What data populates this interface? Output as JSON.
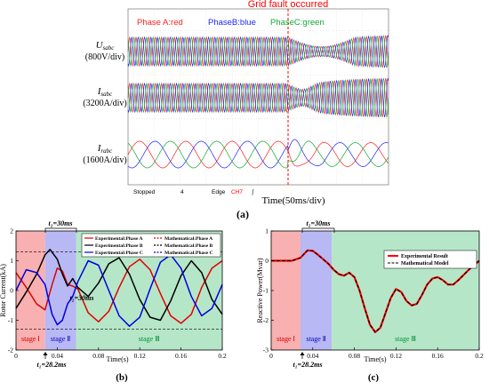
{
  "panel_a": {
    "caption": "(a)",
    "fault_label": "Grid fault occurred",
    "legend": {
      "phase_a": "Phase A:red",
      "phase_b": "PhaseB:blue",
      "phase_c": "PhaseC:green"
    },
    "rows": [
      {
        "label": "U",
        "sub": "sabc",
        "scale": "(800V/div)"
      },
      {
        "label": "I",
        "sub": "sabc",
        "scale": "(3200A/div)"
      },
      {
        "label": "I",
        "sub": "rabc",
        "scale": "(1600A/div)"
      }
    ],
    "status": {
      "stopped": "Stopped",
      "num": "4",
      "edge": "Edge",
      "ch": "CH7",
      "mark": "ʃ"
    },
    "time_label": "Time(50ms/div)",
    "colors": {
      "a": "#ff2020",
      "b": "#2222ff",
      "c": "#11aa33",
      "fault": "#ff0000"
    }
  },
  "chart_data": [
    {
      "type": "line",
      "panel": "(b)",
      "xlabel": "Time(s)",
      "ylabel": "Rotor Current(kA)",
      "xlim": [
        0,
        0.2
      ],
      "ylim": [
        -2,
        2
      ],
      "x_ticks": [
        "0",
        "0.04",
        "0.08",
        "0.12",
        "0.16",
        "0.2"
      ],
      "y_ticks": [
        "2",
        "1",
        "0",
        "-1",
        "-2"
      ],
      "legend": [
        {
          "name": "Experimental:Phase A",
          "color": "#e00000"
        },
        {
          "name": "Mathematical:Phase A",
          "color": "#e00000"
        },
        {
          "name": "Experimental:Phase B",
          "color": "#000000"
        },
        {
          "name": "Mathematical:Phase B",
          "color": "#000000"
        },
        {
          "name": "Experimental:Phase C",
          "color": "#0000e0"
        },
        {
          "name": "Mathematical:Phase C",
          "color": "#0000e0"
        }
      ],
      "stages": [
        {
          "label": "stage Ⅰ",
          "x0": 0,
          "x1": 0.0282,
          "color": "#f8b0b0"
        },
        {
          "label": "stage Ⅱ",
          "x0": 0.0282,
          "x1": 0.0582,
          "color": "#b8b8f4"
        },
        {
          "label": "stage Ⅲ",
          "x0": 0.0582,
          "x1": 0.2,
          "color": "#b6e6c8"
        }
      ],
      "dashed_levels": [
        1.3,
        -1.3
      ],
      "annotations": {
        "t1": "t₁=28.2ms",
        "t2_top": "t₂=30ms",
        "t2_mid": "t₂=30ms"
      },
      "series": [
        {
          "name": "Phase A",
          "color": "#e00000",
          "x": [
            0,
            0.01,
            0.02,
            0.0282,
            0.035,
            0.04,
            0.045,
            0.05,
            0.055,
            0.06,
            0.07,
            0.08,
            0.09,
            0.1,
            0.11,
            0.12,
            0.13,
            0.14,
            0.15,
            0.16,
            0.17,
            0.18,
            0.19,
            0.2
          ],
          "y": [
            0.6,
            0.1,
            -0.45,
            -0.65,
            0.2,
            0.75,
            0.65,
            0.2,
            0.15,
            0.05,
            -0.75,
            -1.05,
            -0.7,
            0.1,
            0.8,
            1.05,
            0.7,
            -0.1,
            -0.85,
            -1.1,
            -0.8,
            0.1,
            0.75,
            1.0
          ]
        },
        {
          "name": "Phase B",
          "color": "#000000",
          "x": [
            0,
            0.01,
            0.02,
            0.0282,
            0.033,
            0.04,
            0.045,
            0.05,
            0.055,
            0.06,
            0.07,
            0.08,
            0.09,
            0.1,
            0.11,
            0.12,
            0.13,
            0.14,
            0.15,
            0.16,
            0.17,
            0.18,
            0.19,
            0.2
          ],
          "y": [
            -0.6,
            -0.05,
            0.55,
            1.2,
            1.38,
            1.05,
            0.55,
            0.15,
            0.4,
            0.1,
            -0.2,
            0.25,
            0.9,
            1.1,
            0.55,
            -0.3,
            -0.9,
            -1.0,
            -0.35,
            0.5,
            1.0,
            0.6,
            -0.3,
            -0.8
          ]
        },
        {
          "name": "Phase C",
          "color": "#0000e0",
          "x": [
            0,
            0.01,
            0.02,
            0.0282,
            0.035,
            0.04,
            0.045,
            0.05,
            0.055,
            0.06,
            0.07,
            0.08,
            0.09,
            0.1,
            0.11,
            0.12,
            0.13,
            0.14,
            0.15,
            0.16,
            0.17,
            0.18,
            0.19,
            0.2
          ],
          "y": [
            0.0,
            0.7,
            0.6,
            0.2,
            -0.8,
            -1.15,
            -1.0,
            -0.45,
            -0.2,
            0.3,
            1.0,
            0.85,
            0.0,
            -0.85,
            -1.2,
            -0.9,
            0.05,
            0.95,
            1.2,
            0.75,
            -0.2,
            -0.85,
            -0.6,
            0.2
          ]
        }
      ]
    },
    {
      "type": "line",
      "panel": "(c)",
      "xlabel": "Time(s)",
      "ylabel": "Reactive Power(Mvar)",
      "xlim": [
        0,
        0.2
      ],
      "ylim": [
        -3,
        1
      ],
      "x_ticks": [
        "0",
        "0.04",
        "0.08",
        "0.12",
        "0.16",
        "0.2"
      ],
      "y_ticks": [
        "1",
        "0",
        "-1",
        "-2",
        "-3"
      ],
      "legend": [
        {
          "name": "Experimental Result",
          "color": "#ff0000"
        },
        {
          "name": "Mathematical Model",
          "color": "#000000"
        }
      ],
      "stages": [
        {
          "label": "stage Ⅰ",
          "x0": 0,
          "x1": 0.0282,
          "color": "#f8b0b0"
        },
        {
          "label": "stage Ⅱ",
          "x0": 0.0282,
          "x1": 0.0582,
          "color": "#b8b8f4"
        },
        {
          "label": "stage Ⅲ",
          "x0": 0.0582,
          "x1": 0.2,
          "color": "#b6e6c8"
        }
      ],
      "annotations": {
        "t1": "t₁=28.2ms",
        "t2_top": "t₂=30ms"
      },
      "series": [
        {
          "name": "Experimental Result",
          "color": "#ff0000",
          "x": [
            0,
            0.01,
            0.02,
            0.0282,
            0.035,
            0.04,
            0.045,
            0.05,
            0.055,
            0.06,
            0.065,
            0.07,
            0.075,
            0.08,
            0.085,
            0.09,
            0.095,
            0.1,
            0.105,
            0.11,
            0.115,
            0.12,
            0.125,
            0.13,
            0.135,
            0.14,
            0.145,
            0.15,
            0.155,
            0.16,
            0.165,
            0.17,
            0.175,
            0.18,
            0.19,
            0.2
          ],
          "y": [
            0.0,
            0.0,
            0.0,
            0.1,
            0.35,
            0.33,
            0.2,
            0.05,
            -0.1,
            -0.3,
            -0.45,
            -0.5,
            -0.4,
            -0.55,
            -1.0,
            -1.6,
            -2.15,
            -2.4,
            -2.25,
            -1.75,
            -1.25,
            -0.95,
            -1.05,
            -1.35,
            -1.5,
            -1.45,
            -1.15,
            -0.8,
            -0.6,
            -0.55,
            -0.65,
            -0.8,
            -0.8,
            -0.65,
            -0.3,
            0.0
          ]
        },
        {
          "name": "Mathematical Model",
          "color": "#000000",
          "x": [
            0,
            0.01,
            0.02,
            0.0282,
            0.035,
            0.04,
            0.045,
            0.05,
            0.055,
            0.06,
            0.065,
            0.07,
            0.075,
            0.08,
            0.085,
            0.09,
            0.095,
            0.1,
            0.105,
            0.11,
            0.115,
            0.12,
            0.125,
            0.13,
            0.135,
            0.14,
            0.145,
            0.15,
            0.155,
            0.16,
            0.165,
            0.17,
            0.175,
            0.18,
            0.19,
            0.2
          ],
          "y": [
            0.0,
            0.0,
            0.0,
            0.1,
            0.35,
            0.33,
            0.2,
            0.05,
            -0.1,
            -0.3,
            -0.45,
            -0.5,
            -0.4,
            -0.55,
            -1.0,
            -1.6,
            -2.15,
            -2.4,
            -2.25,
            -1.75,
            -1.25,
            -0.95,
            -1.05,
            -1.35,
            -1.5,
            -1.45,
            -1.15,
            -0.8,
            -0.6,
            -0.55,
            -0.65,
            -0.8,
            -0.8,
            -0.65,
            -0.3,
            0.0
          ]
        }
      ]
    }
  ]
}
